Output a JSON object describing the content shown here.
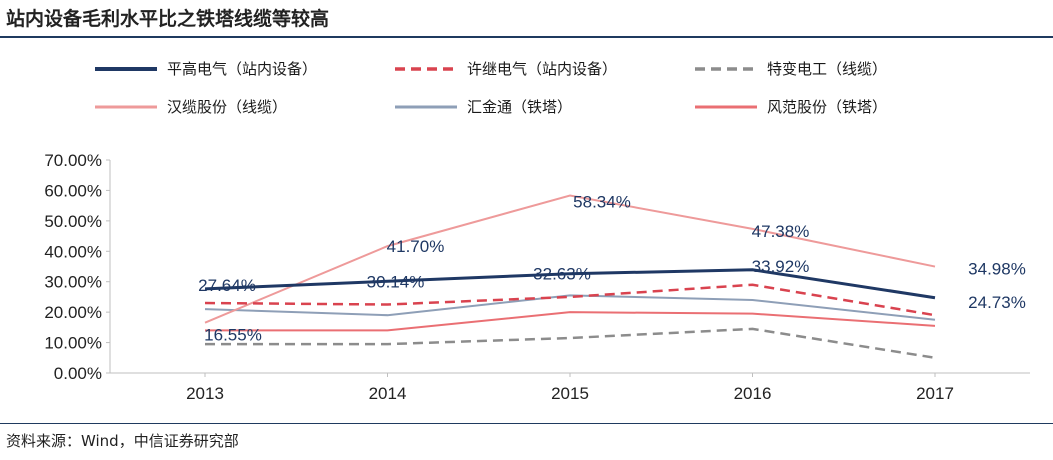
{
  "title": "站内设备毛利水平比之铁塔线缆等较高",
  "source": "资料来源：Wind，中信证券研究部",
  "chart_data": {
    "type": "line",
    "categories": [
      "2013",
      "2014",
      "2015",
      "2016",
      "2017"
    ],
    "ylim": [
      0,
      70
    ],
    "yticks": [
      "0.00%",
      "10.00%",
      "20.00%",
      "30.00%",
      "40.00%",
      "50.00%",
      "60.00%",
      "70.00%"
    ],
    "grid": false,
    "legend_position": "top",
    "series": [
      {
        "name": "平高电气（站内设备）",
        "values": [
          27.64,
          30.14,
          32.63,
          33.92,
          24.73
        ],
        "color": "#1f3864",
        "dash": "solid",
        "width": 3
      },
      {
        "name": "许继电气（站内设备）",
        "values": [
          23.0,
          22.5,
          25.0,
          29.0,
          19.0
        ],
        "color": "#d9434f",
        "dash": "dashed",
        "width": 2.5
      },
      {
        "name": "特变电工（线缆）",
        "values": [
          9.5,
          9.5,
          11.5,
          14.5,
          5.0
        ],
        "color": "#8c8c8c",
        "dash": "dashed",
        "width": 2.5
      },
      {
        "name": "汉缆股份（线缆）",
        "values": [
          16.55,
          41.7,
          58.34,
          47.38,
          34.98
        ],
        "color": "#ee9a9a",
        "dash": "solid",
        "width": 2
      },
      {
        "name": "汇金通（铁塔）",
        "values": [
          21.0,
          19.0,
          25.5,
          24.0,
          17.5
        ],
        "color": "#8e9fb7",
        "dash": "solid",
        "width": 2
      },
      {
        "name": "风范股份（铁塔）",
        "values": [
          14.0,
          14.0,
          20.0,
          19.5,
          15.5
        ],
        "color": "#ea6f73",
        "dash": "solid",
        "width": 2
      }
    ],
    "data_labels": [
      {
        "text": "27.64%",
        "category": "2013",
        "value": 27.64,
        "series": "平高电气（站内设备）"
      },
      {
        "text": "30.14%",
        "category": "2014",
        "value": 30.14,
        "series": "平高电气（站内设备）"
      },
      {
        "text": "32.63%",
        "category": "2015",
        "value": 32.63,
        "series": "平高电气（站内设备）"
      },
      {
        "text": "33.92%",
        "category": "2016",
        "value": 33.92,
        "series": "平高电气（站内设备）"
      },
      {
        "text": "24.73%",
        "category": "2017",
        "value": 24.73,
        "series": "平高电气（站内设备）"
      },
      {
        "text": "16.55%",
        "category": "2013",
        "value": 16.55,
        "series": "汉缆股份（线缆）"
      },
      {
        "text": "41.70%",
        "category": "2014",
        "value": 41.7,
        "series": "汉缆股份（线缆）"
      },
      {
        "text": "58.34%",
        "category": "2015",
        "value": 58.34,
        "series": "汉缆股份（线缆）"
      },
      {
        "text": "47.38%",
        "category": "2016",
        "value": 47.38,
        "series": "汉缆股份（线缆）"
      },
      {
        "text": "34.98%",
        "category": "2017",
        "value": 34.98,
        "series": "汉缆股份（线缆）"
      }
    ]
  }
}
